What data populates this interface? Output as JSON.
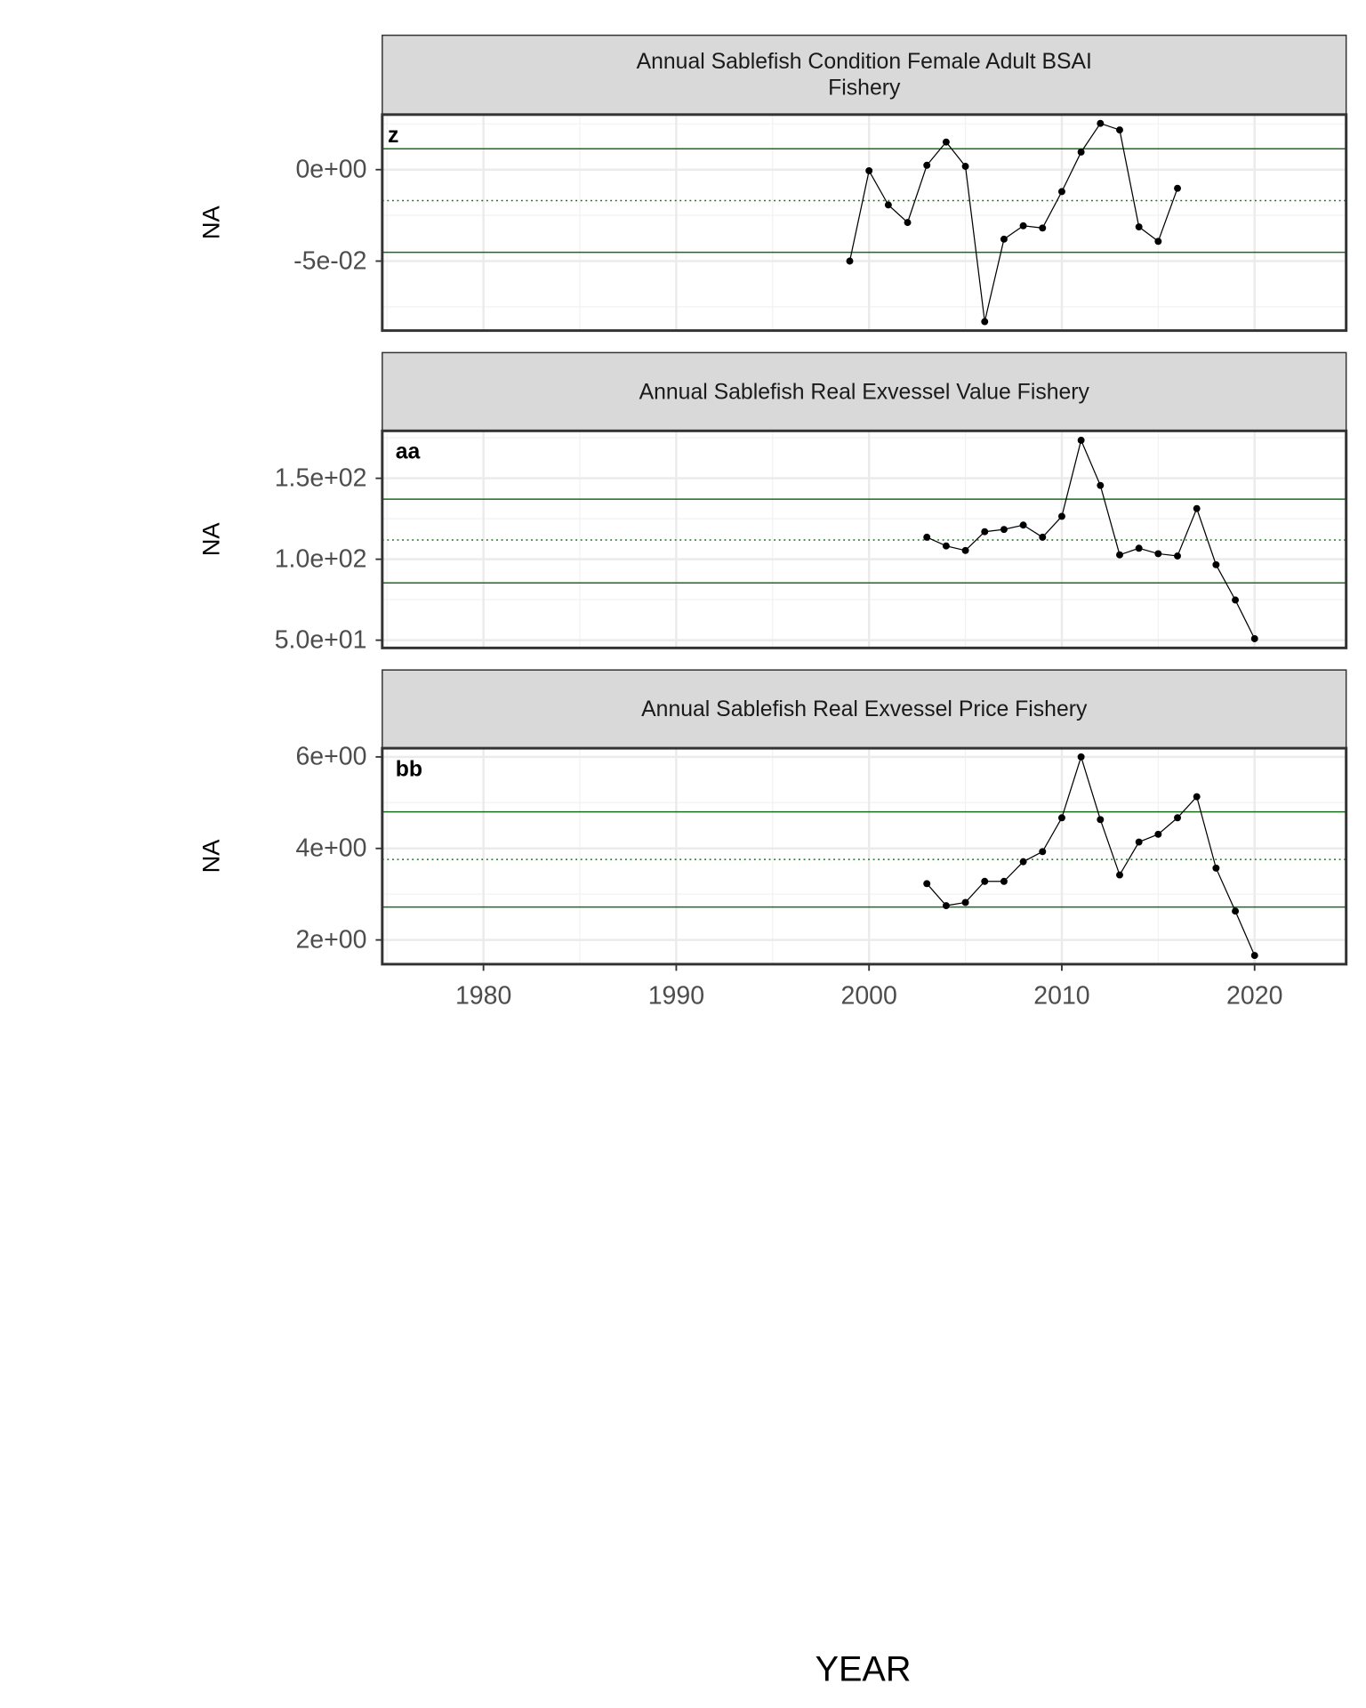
{
  "chart_data": [
    {
      "type": "line",
      "title": "Annual Sablefish Condition Female Adult BSAI\nFishery",
      "tag": "z",
      "ylabel": "NA",
      "x": [
        1999,
        2000,
        2001,
        2002,
        2003,
        2004,
        2005,
        2006,
        2007,
        2008,
        2009,
        2010,
        2011,
        2012,
        2013,
        2014,
        2015,
        2016
      ],
      "values": [
        -0.05,
        -0.0006,
        -0.0193,
        -0.0289,
        0.0024,
        0.0151,
        0.0018,
        -0.0831,
        -0.038,
        -0.0307,
        -0.0319,
        -0.012,
        0.0096,
        0.0253,
        0.0217,
        -0.0313,
        -0.0392,
        -0.0102
      ],
      "color": "#000000",
      "xlim": [
        1974.75,
        2024.75
      ],
      "xticks": [
        1980,
        1990,
        2000,
        2010,
        2020
      ],
      "ylim": [
        -0.088,
        0.0301
      ],
      "yticks": [
        {
          "value": -0.05,
          "label": "-5e-02"
        },
        {
          "value": 0,
          "label": "0e+00"
        }
      ],
      "hlines": [
        0.0114,
        -0.0169,
        -0.0452
      ],
      "hline_styles": [
        "solid",
        "dotted",
        "solid"
      ],
      "hline_color": "#1a6b1a",
      "grid": true
    },
    {
      "type": "line",
      "title": "Annual Sablefish Real Exvessel Value Fishery",
      "tag": "aa",
      "ylabel": "NA",
      "x": [
        2003,
        2004,
        2005,
        2006,
        2007,
        2008,
        2009,
        2010,
        2011,
        2012,
        2013,
        2014,
        2015,
        2016,
        2017,
        2018,
        2019,
        2020
      ],
      "values": [
        113.6,
        108.2,
        105.4,
        117.0,
        118.4,
        121.1,
        113.6,
        126.5,
        173.5,
        145.6,
        102.7,
        106.8,
        103.4,
        102.0,
        131.3,
        96.6,
        74.8,
        50.9
      ],
      "color": "#000000",
      "xlim": [
        1974.75,
        2024.75
      ],
      "xticks": [
        1980,
        1990,
        2000,
        2010,
        2020
      ],
      "ylim": [
        45.2,
        179.3
      ],
      "yticks": [
        {
          "value": 50,
          "label": "5.0e+01"
        },
        {
          "value": 100,
          "label": "1.0e+02"
        },
        {
          "value": 150,
          "label": "1.5e+02"
        }
      ],
      "hlines": [
        137.1,
        111.9,
        85.4
      ],
      "hline_styles": [
        "solid",
        "dotted",
        "solid"
      ],
      "hline_color": "#1a6b1a",
      "grid": true
    },
    {
      "type": "line",
      "title": "Annual Sablefish Real Exvessel Price Fishery",
      "tag": "bb",
      "ylabel": "NA",
      "xlabel": "YEAR",
      "x": [
        2003,
        2004,
        2005,
        2006,
        2007,
        2008,
        2009,
        2010,
        2011,
        2012,
        2013,
        2014,
        2015,
        2016,
        2017,
        2018,
        2019,
        2020
      ],
      "values": [
        3.23,
        2.75,
        2.82,
        3.28,
        3.28,
        3.71,
        3.93,
        4.67,
        6.0,
        4.63,
        3.42,
        4.14,
        4.31,
        4.67,
        5.13,
        3.57,
        2.63,
        1.66
      ],
      "color": "#000000",
      "xlim": [
        1974.75,
        2024.75
      ],
      "xticks": [
        1980,
        1990,
        2000,
        2010,
        2020
      ],
      "ylim": [
        1.47,
        6.19
      ],
      "yticks": [
        {
          "value": 2,
          "label": "2e+00"
        },
        {
          "value": 4,
          "label": "4e+00"
        },
        {
          "value": 6,
          "label": "6e+00"
        }
      ],
      "hlines": [
        4.8,
        3.76,
        2.72
      ],
      "hline_styles": [
        "solid",
        "dotted",
        "solid"
      ],
      "hline_color": "#1a6b1a",
      "grid": true
    }
  ]
}
